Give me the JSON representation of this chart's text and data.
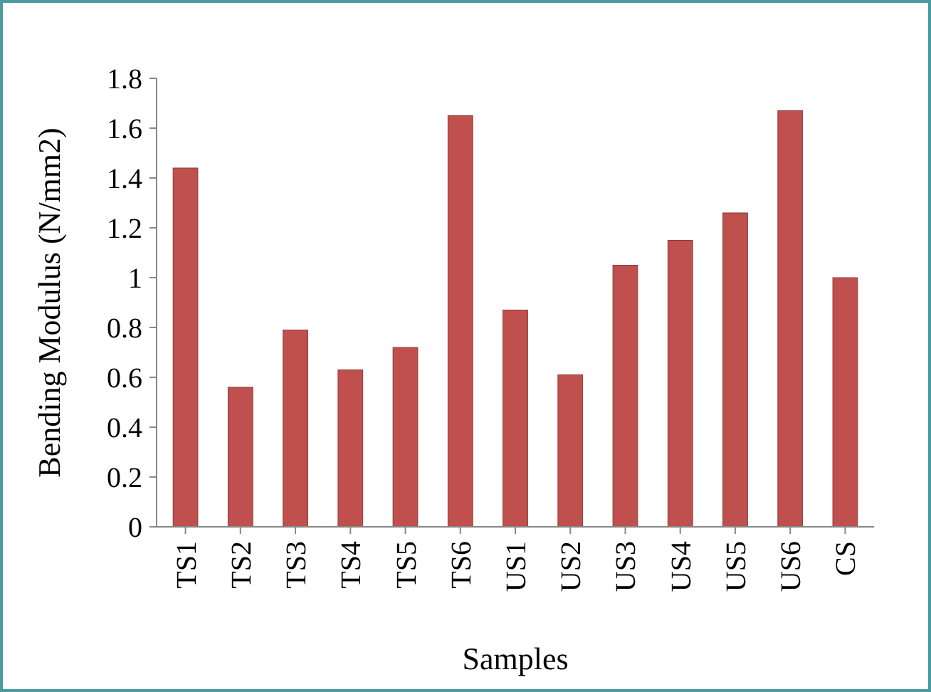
{
  "chart_data": {
    "type": "bar",
    "xlabel": "Samples",
    "ylabel": "Bending Modulus (N/mm2)",
    "categories": [
      "TS1",
      "TS2",
      "TS3",
      "TS4",
      "TS5",
      "TS6",
      "US1",
      "US2",
      "US3",
      "US4",
      "US5",
      "US6",
      "CS"
    ],
    "values": [
      1.44,
      0.56,
      0.79,
      0.63,
      0.72,
      1.65,
      0.87,
      0.61,
      1.05,
      1.15,
      1.26,
      1.67,
      1.0
    ],
    "color": "#c0504d",
    "ylim": [
      0,
      1.8
    ],
    "yticks": [
      0,
      0.2,
      0.4,
      0.6,
      0.8,
      1,
      1.2,
      1.4,
      1.6,
      1.8
    ],
    "grid": false
  }
}
